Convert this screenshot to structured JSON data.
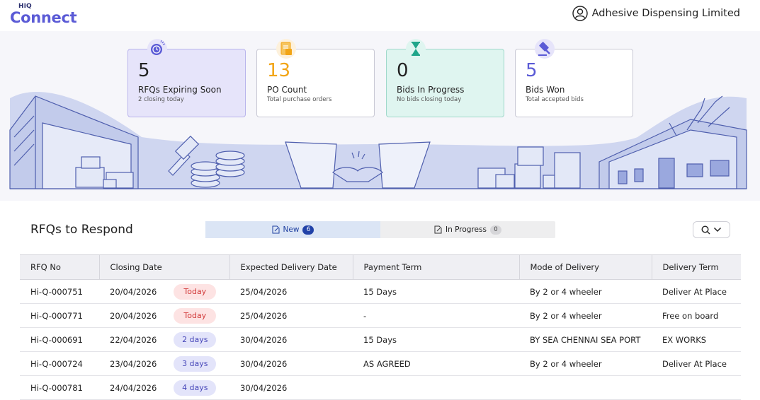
{
  "header": {
    "logo_top": "HiQ",
    "logo_main": "Connect",
    "company": "Adhesive Dispensing Limited"
  },
  "cards": [
    {
      "value": "5",
      "label": "RFQs Expiring Soon",
      "sub": "2 closing today",
      "icon": "clock-icon"
    },
    {
      "value": "13",
      "label": "PO Count",
      "sub": "Total purchase orders",
      "icon": "document-icon"
    },
    {
      "value": "0",
      "label": "Bids In Progress",
      "sub": "No bids closing today",
      "icon": "hourglass-icon"
    },
    {
      "value": "5",
      "label": "Bids Won",
      "sub": "Total accepted bids",
      "icon": "gavel-icon"
    }
  ],
  "panel": {
    "title": "RFQs to Respond",
    "tabs": [
      {
        "label": "New",
        "count": "6"
      },
      {
        "label": "In Progress",
        "count": "0"
      }
    ],
    "columns": [
      "RFQ No",
      "Closing Date",
      "Expected Delivery Date",
      "Payment Term",
      "Mode of Delivery",
      "Delivery Term"
    ],
    "rows": [
      {
        "rfq": "Hi-Q-000751",
        "closing": "20/04/2026",
        "tag": "Today",
        "expected": "25/04/2026",
        "payment": "15 Days",
        "mode": "By 2 or 4 wheeler",
        "term": "Deliver At Place"
      },
      {
        "rfq": "Hi-Q-000771",
        "closing": "20/04/2026",
        "tag": "Today",
        "expected": "25/04/2026",
        "payment": "-",
        "mode": "By 2 or 4 wheeler",
        "term": "Free on board"
      },
      {
        "rfq": "Hi-Q-000691",
        "closing": "22/04/2026",
        "tag": "2 days",
        "expected": "30/04/2026",
        "payment": "15 Days",
        "mode": "BY SEA CHENNAI SEA PORT",
        "term": "EX WORKS"
      },
      {
        "rfq": "Hi-Q-000724",
        "closing": "23/04/2026",
        "tag": "3 days",
        "expected": "30/04/2026",
        "payment": "AS AGREED",
        "mode": "By 2 or 4 wheeler",
        "term": "Deliver At Place"
      },
      {
        "rfq": "Hi-Q-000781",
        "closing": "24/04/2026",
        "tag": "4 days",
        "expected": "30/04/2026",
        "payment": "",
        "mode": "",
        "term": ""
      }
    ]
  },
  "colors": {
    "accent": "#5b5bd6",
    "today_bg": "#fde3e3",
    "today_fg": "#d23b3b",
    "days_bg": "#e3e4fa",
    "days_fg": "#4747b9",
    "po_count": "#f2a516"
  }
}
